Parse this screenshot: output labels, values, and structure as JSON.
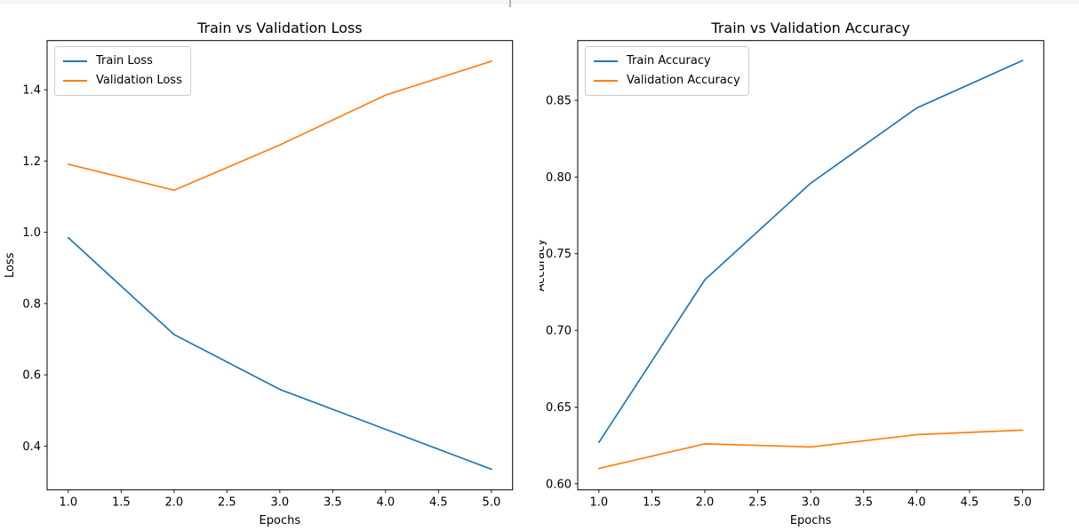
{
  "window": {
    "top_strip_color": "#f5f5f5",
    "divider_color": "#b0b0b0"
  },
  "chart_data": [
    {
      "type": "line",
      "title": "Train vs Validation Loss",
      "xlabel": "Epochs",
      "ylabel": "Loss",
      "x": [
        1,
        2,
        3,
        4,
        5
      ],
      "series": [
        {
          "name": "Train Loss",
          "color": "#1f77b4",
          "values": [
            0.985,
            0.713,
            0.559,
            0.447,
            0.335
          ]
        },
        {
          "name": "Validation Loss",
          "color": "#ff7f0e",
          "values": [
            1.191,
            1.118,
            1.245,
            1.385,
            1.48
          ]
        }
      ],
      "xlim": [
        0.8,
        5.2
      ],
      "ylim": [
        0.277,
        1.538
      ],
      "xtick_labels": [
        "1.0",
        "1.5",
        "2.0",
        "2.5",
        "3.0",
        "3.5",
        "4.0",
        "4.5",
        "5.0"
      ],
      "ytick_labels": [
        "0.4",
        "0.6",
        "0.8",
        "1.0",
        "1.2",
        "1.4"
      ],
      "legend_position": "upper left",
      "grid": false
    },
    {
      "type": "line",
      "title": "Train vs Validation Accuracy",
      "xlabel": "Epochs",
      "ylabel": "Accuracy",
      "x": [
        1,
        2,
        3,
        4,
        5
      ],
      "series": [
        {
          "name": "Train Accuracy",
          "color": "#1f77b4",
          "values": [
            0.627,
            0.733,
            0.796,
            0.845,
            0.876
          ]
        },
        {
          "name": "Validation Accuracy",
          "color": "#ff7f0e",
          "values": [
            0.61,
            0.626,
            0.624,
            0.632,
            0.635
          ]
        }
      ],
      "xlim": [
        0.8,
        5.2
      ],
      "ylim": [
        0.596,
        0.889
      ],
      "xtick_labels": [
        "1.0",
        "1.5",
        "2.0",
        "2.5",
        "3.0",
        "3.5",
        "4.0",
        "4.5",
        "5.0"
      ],
      "ytick_labels": [
        "0.60",
        "0.65",
        "0.70",
        "0.75",
        "0.80",
        "0.85"
      ],
      "legend_position": "upper left",
      "grid": false
    }
  ]
}
